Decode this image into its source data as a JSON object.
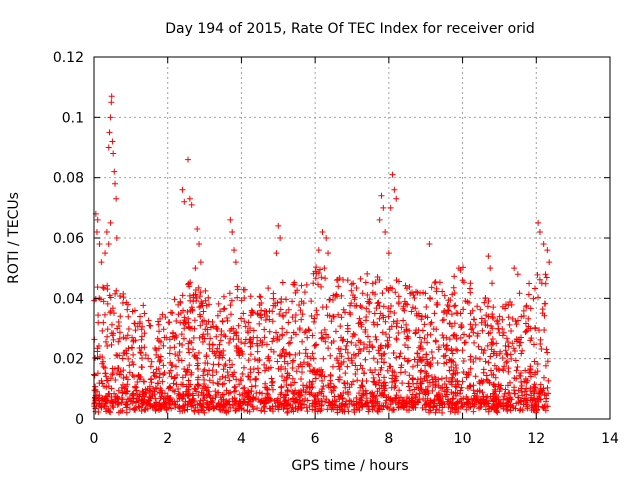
{
  "chart_data": {
    "type": "scatter",
    "title": "Day 194 of 2015, Rate Of TEC Index for receiver orid",
    "xlabel": "GPS time / hours",
    "ylabel": "ROTI / TECUs",
    "xlim": [
      0,
      14
    ],
    "ylim": [
      0,
      0.12
    ],
    "x_ticks": [
      0,
      2,
      4,
      6,
      8,
      10,
      12,
      14
    ],
    "x_tick_labels": [
      "0",
      "2",
      "4",
      "6",
      "8",
      "10",
      "12",
      "14"
    ],
    "y_ticks": [
      0,
      0.02,
      0.04,
      0.06,
      0.08,
      0.1,
      0.12
    ],
    "y_tick_labels": [
      "0",
      "0.02",
      "0.04",
      "0.06",
      "0.08",
      "0.1",
      "0.12"
    ],
    "grid": true,
    "marker": "+",
    "color": "#ff0000",
    "series": [
      {
        "name": "ROTI",
        "points": [
          [
            0.05,
            0.068
          ],
          [
            0.08,
            0.062
          ],
          [
            0.1,
            0.066
          ],
          [
            0.15,
            0.058
          ],
          [
            0.2,
            0.052
          ],
          [
            0.3,
            0.055
          ],
          [
            0.35,
            0.062
          ],
          [
            0.4,
            0.09
          ],
          [
            0.42,
            0.095
          ],
          [
            0.45,
            0.1
          ],
          [
            0.47,
            0.105
          ],
          [
            0.48,
            0.107
          ],
          [
            0.5,
            0.092
          ],
          [
            0.52,
            0.088
          ],
          [
            0.55,
            0.082
          ],
          [
            0.57,
            0.078
          ],
          [
            0.6,
            0.073
          ],
          [
            0.62,
            0.06
          ],
          [
            0.45,
            0.065
          ],
          [
            0.4,
            0.058
          ],
          [
            2.4,
            0.076
          ],
          [
            2.45,
            0.072
          ],
          [
            2.55,
            0.086
          ],
          [
            2.6,
            0.073
          ],
          [
            2.65,
            0.071
          ],
          [
            2.8,
            0.063
          ],
          [
            2.85,
            0.058
          ],
          [
            2.9,
            0.052
          ],
          [
            2.75,
            0.05
          ],
          [
            3.7,
            0.066
          ],
          [
            3.75,
            0.062
          ],
          [
            3.8,
            0.056
          ],
          [
            3.85,
            0.052
          ],
          [
            5.0,
            0.064
          ],
          [
            5.05,
            0.06
          ],
          [
            4.95,
            0.055
          ],
          [
            6.1,
            0.056
          ],
          [
            6.2,
            0.062
          ],
          [
            6.3,
            0.06
          ],
          [
            6.35,
            0.055
          ],
          [
            6.25,
            0.05
          ],
          [
            7.8,
            0.074
          ],
          [
            7.85,
            0.07
          ],
          [
            7.75,
            0.066
          ],
          [
            7.9,
            0.062
          ],
          [
            8.1,
            0.081
          ],
          [
            8.15,
            0.076
          ],
          [
            8.2,
            0.073
          ],
          [
            8.05,
            0.07
          ],
          [
            8.0,
            0.055
          ],
          [
            9.1,
            0.058
          ],
          [
            9.9,
            0.05
          ],
          [
            10.0,
            0.046
          ],
          [
            10.7,
            0.054
          ],
          [
            10.75,
            0.05
          ],
          [
            10.8,
            0.045
          ],
          [
            11.4,
            0.05
          ],
          [
            11.5,
            0.048
          ],
          [
            12.05,
            0.065
          ],
          [
            12.1,
            0.062
          ],
          [
            12.2,
            0.058
          ],
          [
            12.3,
            0.056
          ],
          [
            12.35,
            0.052
          ],
          [
            12.25,
            0.048
          ],
          [
            12.15,
            0.045
          ]
        ],
        "band": {
          "x_range": [
            0,
            12.35
          ],
          "floor": 0.002,
          "upper_envelope": [
            [
              0.0,
              0.045
            ],
            [
              0.5,
              0.04
            ],
            [
              1.0,
              0.04
            ],
            [
              1.5,
              0.032
            ],
            [
              2.0,
              0.035
            ],
            [
              2.5,
              0.045
            ],
            [
              3.0,
              0.04
            ],
            [
              3.5,
              0.04
            ],
            [
              4.0,
              0.042
            ],
            [
              4.5,
              0.04
            ],
            [
              5.0,
              0.045
            ],
            [
              5.5,
              0.045
            ],
            [
              6.0,
              0.05
            ],
            [
              6.5,
              0.045
            ],
            [
              7.0,
              0.045
            ],
            [
              7.5,
              0.048
            ],
            [
              8.0,
              0.045
            ],
            [
              8.5,
              0.048
            ],
            [
              9.0,
              0.045
            ],
            [
              9.5,
              0.042
            ],
            [
              10.0,
              0.05
            ],
            [
              10.5,
              0.04
            ],
            [
              11.0,
              0.035
            ],
            [
              11.5,
              0.038
            ],
            [
              12.0,
              0.045
            ],
            [
              12.35,
              0.05
            ]
          ],
          "count": 2600
        }
      }
    ]
  }
}
